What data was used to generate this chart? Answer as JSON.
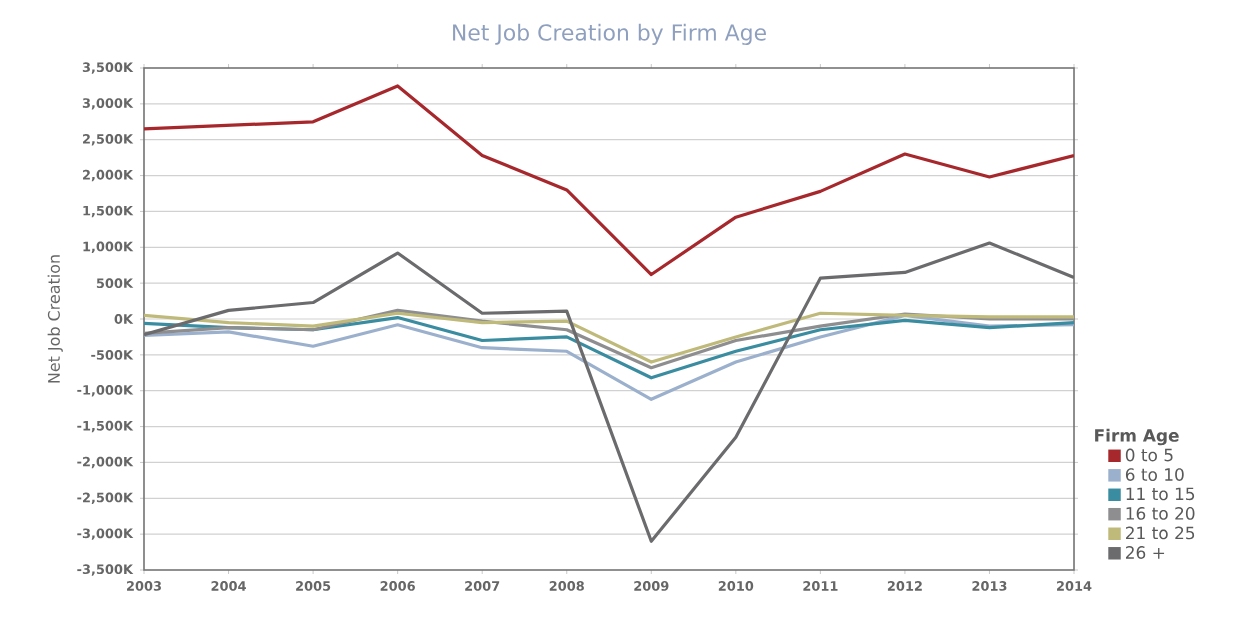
{
  "chart_data": {
    "type": "line",
    "title": "Net Job Creation by Firm Age",
    "ylabel": "Net Job Creation",
    "legend_title": "Firm Age",
    "x": [
      2003,
      2004,
      2005,
      2006,
      2007,
      2008,
      2009,
      2010,
      2011,
      2012,
      2013,
      2014
    ],
    "series": [
      {
        "name": "0 to 5",
        "color": "#a7282c",
        "values": [
          2650,
          2700,
          2750,
          3250,
          2280,
          1800,
          620,
          1420,
          1780,
          2300,
          1980,
          2280
        ]
      },
      {
        "name": "6 to 10",
        "color": "#9bb0cc",
        "values": [
          -230,
          -180,
          -380,
          -80,
          -400,
          -450,
          -1120,
          -600,
          -250,
          50,
          -100,
          -80
        ]
      },
      {
        "name": "11 to 15",
        "color": "#3a8ca0",
        "values": [
          -60,
          -120,
          -150,
          20,
          -300,
          -250,
          -820,
          -450,
          -150,
          -20,
          -120,
          -50
        ]
      },
      {
        "name": "16 to 20",
        "color": "#8e8e91",
        "values": [
          -200,
          -120,
          -150,
          120,
          -30,
          -150,
          -680,
          -300,
          -100,
          70,
          0,
          0
        ]
      },
      {
        "name": "21 to 25",
        "color": "#bfb97a",
        "values": [
          50,
          -50,
          -100,
          80,
          -50,
          -30,
          -600,
          -250,
          80,
          50,
          30,
          30
        ]
      },
      {
        "name": "26 +",
        "color": "#6b6b6e",
        "values": [
          -220,
          120,
          230,
          920,
          80,
          110,
          -3100,
          -1650,
          570,
          650,
          1060,
          580
        ]
      }
    ],
    "xlim": [
      2003,
      2014
    ],
    "xticks": [
      2003,
      2004,
      2005,
      2006,
      2007,
      2008,
      2009,
      2010,
      2011,
      2012,
      2013,
      2014
    ],
    "ylim": [
      -3500,
      3500
    ],
    "yticks": [
      {
        "value": -3500,
        "label": "-3,500K"
      },
      {
        "value": -3000,
        "label": "-3,000K"
      },
      {
        "value": -2500,
        "label": "-2,500K"
      },
      {
        "value": -2000,
        "label": "-2,000K"
      },
      {
        "value": -1500,
        "label": "-1,500K"
      },
      {
        "value": -1000,
        "label": "-1,000K"
      },
      {
        "value": -500,
        "label": "-500K"
      },
      {
        "value": 0,
        "label": "0K"
      },
      {
        "value": 500,
        "label": "500K"
      },
      {
        "value": 1000,
        "label": "1,000K"
      },
      {
        "value": 1500,
        "label": "1,500K"
      },
      {
        "value": 2000,
        "label": "2,000K"
      },
      {
        "value": 2500,
        "label": "2,500K"
      },
      {
        "value": 3000,
        "label": "3,000K"
      },
      {
        "value": 3500,
        "label": "3,500K"
      }
    ],
    "grid": "y",
    "legend": "right",
    "marker": "none",
    "line_style": "solid"
  }
}
